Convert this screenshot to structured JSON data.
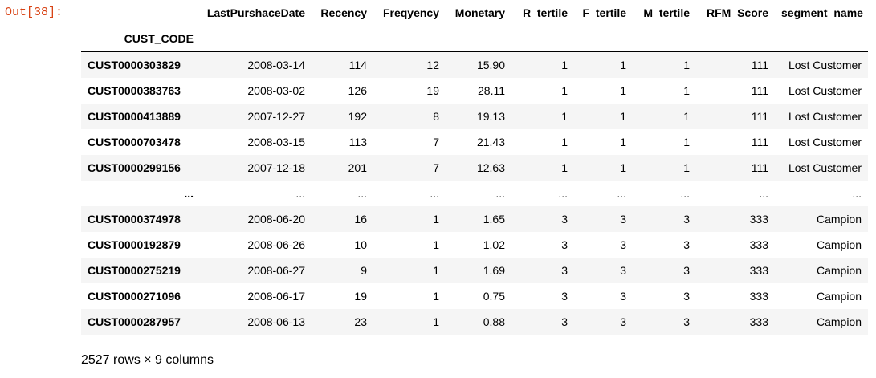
{
  "prompt": "Out[38]:",
  "table": {
    "columns": [
      "LastPurshaceDate",
      "Recency",
      "Freqyency",
      "Monetary",
      "R_tertile",
      "F_tertile",
      "M_tertile",
      "RFM_Score",
      "segment_name"
    ],
    "index_name": "CUST_CODE",
    "rows": [
      {
        "index": "CUST0000303829",
        "cells": [
          "2008-03-14",
          "114",
          "12",
          "15.90",
          "1",
          "1",
          "1",
          "111",
          "Lost Customer"
        ]
      },
      {
        "index": "CUST0000383763",
        "cells": [
          "2008-03-02",
          "126",
          "19",
          "28.11",
          "1",
          "1",
          "1",
          "111",
          "Lost Customer"
        ]
      },
      {
        "index": "CUST0000413889",
        "cells": [
          "2007-12-27",
          "192",
          "8",
          "19.13",
          "1",
          "1",
          "1",
          "111",
          "Lost Customer"
        ]
      },
      {
        "index": "CUST0000703478",
        "cells": [
          "2008-03-15",
          "113",
          "7",
          "21.43",
          "1",
          "1",
          "1",
          "111",
          "Lost Customer"
        ]
      },
      {
        "index": "CUST0000299156",
        "cells": [
          "2007-12-18",
          "201",
          "7",
          "12.63",
          "1",
          "1",
          "1",
          "111",
          "Lost Customer"
        ]
      },
      {
        "index": "...",
        "cells": [
          "...",
          "...",
          "...",
          "...",
          "...",
          "...",
          "...",
          "...",
          "..."
        ]
      },
      {
        "index": "CUST0000374978",
        "cells": [
          "2008-06-20",
          "16",
          "1",
          "1.65",
          "3",
          "3",
          "3",
          "333",
          "Campion"
        ]
      },
      {
        "index": "CUST0000192879",
        "cells": [
          "2008-06-26",
          "10",
          "1",
          "1.02",
          "3",
          "3",
          "3",
          "333",
          "Campion"
        ]
      },
      {
        "index": "CUST0000275219",
        "cells": [
          "2008-06-27",
          "9",
          "1",
          "1.69",
          "3",
          "3",
          "3",
          "333",
          "Campion"
        ]
      },
      {
        "index": "CUST0000271096",
        "cells": [
          "2008-06-17",
          "19",
          "1",
          "0.75",
          "3",
          "3",
          "3",
          "333",
          "Campion"
        ]
      },
      {
        "index": "CUST0000287957",
        "cells": [
          "2008-06-13",
          "23",
          "1",
          "0.88",
          "3",
          "3",
          "3",
          "333",
          "Campion"
        ]
      }
    ]
  },
  "summary": "2527 rows × 9 columns",
  "colors": {
    "prompt": "#d84315",
    "row_stripe": "#f5f5f5"
  }
}
